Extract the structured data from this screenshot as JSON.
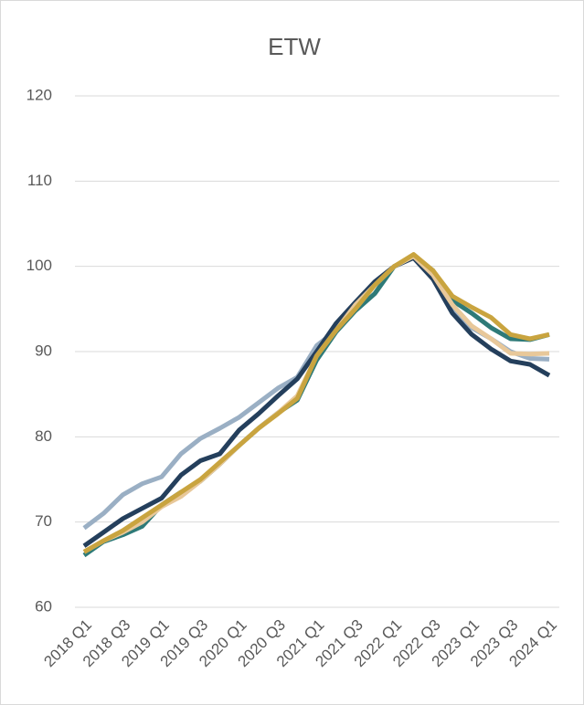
{
  "chart_data": {
    "type": "line",
    "title": "ETW",
    "categories": [
      "2018 Q1",
      null,
      "2018 Q3",
      null,
      "2019 Q1",
      null,
      "2019 Q3",
      null,
      "2020 Q1",
      null,
      "2020 Q3",
      null,
      "2021 Q1",
      null,
      "2021 Q3",
      null,
      "2022 Q1",
      null,
      "2022 Q3",
      null,
      "2023 Q1",
      null,
      "2023 Q3",
      null,
      "2024 Q1"
    ],
    "series": [
      {
        "color": "#9aafc4",
        "values": [
          69.3,
          71,
          73.2,
          74.5,
          75.3,
          78,
          79.8,
          81,
          82.3,
          84,
          85.7,
          87,
          90.7,
          92.5,
          95,
          98,
          100,
          101.2,
          99,
          95,
          92.8,
          91.5,
          90,
          89.2,
          89.1
        ]
      },
      {
        "color": "#243f5c",
        "values": [
          67.2,
          68.8,
          70.4,
          71.6,
          72.8,
          75.5,
          77.2,
          78,
          80.8,
          82.7,
          84.8,
          86.8,
          90,
          93.3,
          95.8,
          98.2,
          100,
          101,
          98.5,
          94.5,
          92,
          90.3,
          88.9,
          88.5,
          87.2
        ]
      },
      {
        "color": "#2e7a78",
        "values": [
          66.1,
          67.7,
          68.5,
          69.5,
          72,
          73.5,
          74.8,
          76.8,
          79,
          81,
          82.8,
          84.3,
          89,
          92.3,
          94.8,
          96.8,
          100,
          101.2,
          99.5,
          96,
          94.5,
          92.8,
          91.5,
          91.4,
          92
        ]
      },
      {
        "color": "#e8c89a",
        "values": [
          66.5,
          67.8,
          68.8,
          70,
          71.8,
          73,
          74.8,
          76.8,
          79,
          81,
          82.8,
          84.8,
          89.5,
          92.5,
          95.5,
          97.8,
          100,
          101.2,
          99,
          95.5,
          93,
          91.5,
          89.8,
          89.7,
          89.8
        ]
      },
      {
        "color": "#c9a43f",
        "values": [
          66.5,
          67.8,
          69,
          70.5,
          72,
          73.5,
          75,
          77,
          79,
          81,
          82.7,
          84.5,
          89.5,
          92.5,
          95,
          97.8,
          100,
          101.4,
          99.5,
          96.5,
          95.2,
          94,
          92,
          91.5,
          92
        ]
      }
    ],
    "ylim": [
      60,
      120
    ],
    "yticks": [
      60,
      70,
      80,
      90,
      100,
      110,
      120
    ],
    "grid": true
  }
}
